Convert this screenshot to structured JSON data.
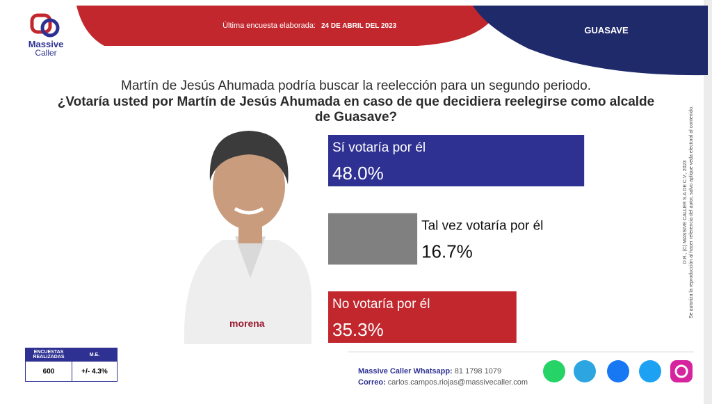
{
  "header": {
    "logo_text_1": "Massive",
    "logo_text_2": "Caller",
    "survey_label": "Última encuesta elaborada:",
    "survey_date": "24 DE ABRIL DEL 2023",
    "location": "GUASAVE"
  },
  "question": {
    "intro": "Martín de Jesús Ahumada podría buscar la reelección para un segundo periodo.",
    "text": "¿Votaría usted por Martín de Jesús Ahumada en caso de que decidiera reelegirse como alcalde de Guasave?"
  },
  "chart_data": {
    "type": "bar",
    "orientation": "horizontal",
    "categories": [
      "Sí votaría por él",
      "Tal vez votaría por él",
      "No votaría por él"
    ],
    "values": [
      48.0,
      16.7,
      35.3
    ],
    "value_labels": [
      "48.0%",
      "16.7%",
      "35.3%"
    ],
    "colors": [
      "#2e3192",
      "#808080",
      "#c1272d"
    ]
  },
  "photo_text": "morena",
  "sample_table": {
    "headers": [
      "ENCUESTAS REALIZADAS",
      "M.E."
    ],
    "row": [
      "600",
      "+/- 4.3%"
    ]
  },
  "contact": {
    "whatsapp_label": "Massive Caller Whatsapp:",
    "whatsapp": "81 1798 1079",
    "email_label": "Correo:",
    "email": "carlos.campos.riojas@massivecaller.com"
  },
  "disclaimer": [
    "D.R., (C) MASSIVE CALLER S.A DE C.V., 2023",
    "Se autoriza la reproducción al hacer referencia del autor, salvo aplique veda electoral al contenido."
  ]
}
